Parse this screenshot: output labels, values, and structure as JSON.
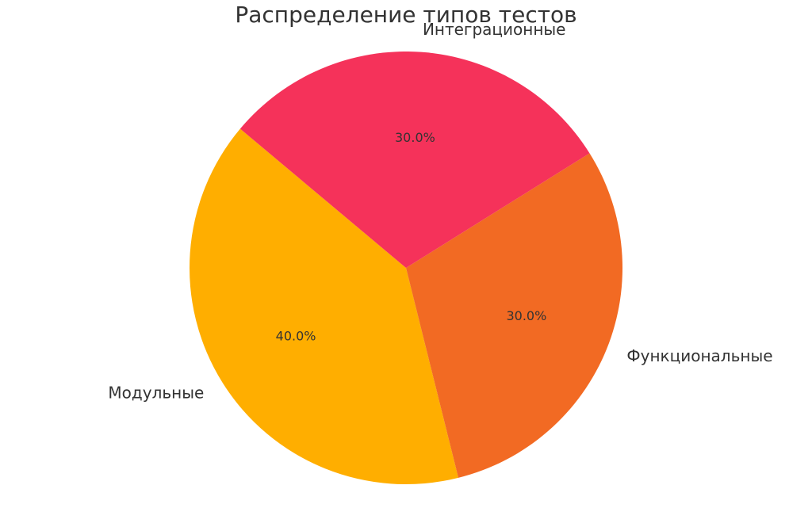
{
  "chart_data": {
    "type": "pie",
    "title": "Распределение типов тестов",
    "slices": [
      {
        "label": "Модульные",
        "value": 40.0,
        "pct_label": "40.0%",
        "color": "#ffae00"
      },
      {
        "label": "Функциональные",
        "value": 30.0,
        "pct_label": "30.0%",
        "color": "#f26a23"
      },
      {
        "label": "Интеграционные",
        "value": 30.0,
        "pct_label": "30.0%",
        "color": "#f5325a"
      }
    ],
    "start_angle_deg": 140,
    "direction": "counterclockwise",
    "legend": "none"
  }
}
